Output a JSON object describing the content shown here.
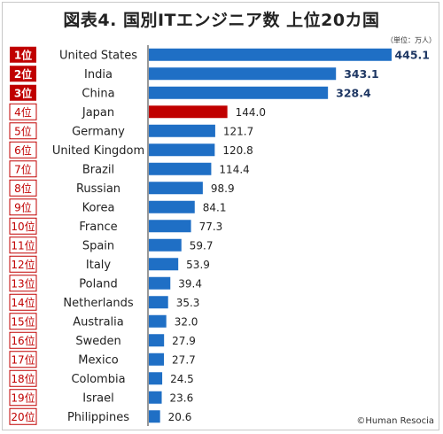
{
  "title": "図表4. 国別ITエンジニア数 上位20カ国",
  "unit_note": "（単位：万人）",
  "credit": "©Human Resocia",
  "colors": {
    "bar": "#1f6fc5",
    "highlight": "#c00000",
    "rank_accent": "#c00000"
  },
  "chart_data": {
    "type": "bar",
    "orientation": "horizontal",
    "title": "図表4. 国別ITエンジニア数 上位20カ国",
    "unit": "（単位：万人）",
    "highlight_category": "Japan",
    "ranks": [
      "1位",
      "2位",
      "3位",
      "4位",
      "5位",
      "6位",
      "7位",
      "8位",
      "9位",
      "10位",
      "11位",
      "12位",
      "13位",
      "14位",
      "15位",
      "16位",
      "17位",
      "18位",
      "19位",
      "20位"
    ],
    "categories": [
      "United States",
      "India",
      "China",
      "Japan",
      "Germany",
      "United Kingdom",
      "Brazil",
      "Russian",
      "Korea",
      "France",
      "Spain",
      "Italy",
      "Poland",
      "Netherlands",
      "Australia",
      "Sweden",
      "Mexico",
      "Colombia",
      "Israel",
      "Philippines"
    ],
    "values": [
      445.1,
      343.1,
      328.4,
      144.0,
      121.7,
      120.8,
      114.4,
      98.9,
      84.1,
      77.3,
      59.7,
      53.9,
      39.4,
      35.3,
      32.0,
      27.9,
      27.7,
      24.5,
      23.6,
      20.6
    ],
    "value_labels": [
      "445.1",
      "343.1",
      "328.4",
      "144.0",
      "121.7",
      "120.8",
      "114.4",
      "98.9",
      "84.1",
      "77.3",
      "59.7",
      "53.9",
      "39.4",
      "35.3",
      "32.0",
      "27.9",
      "27.7",
      "24.5",
      "23.6",
      "20.6"
    ],
    "xlim": [
      0,
      445.1
    ],
    "grid": false,
    "legend": "none"
  }
}
